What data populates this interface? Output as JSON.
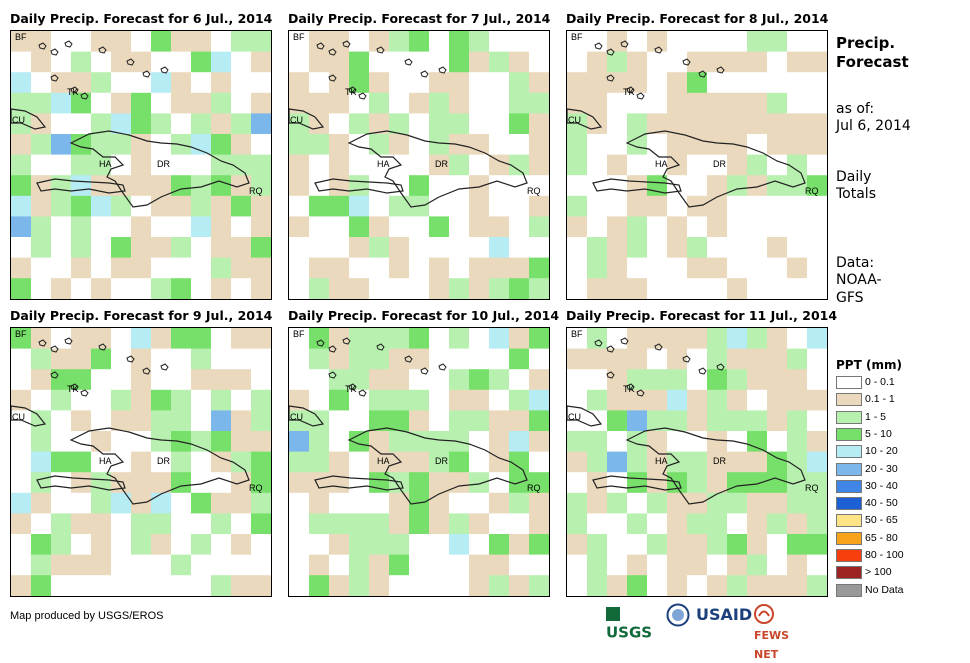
{
  "panels": [
    {
      "title": "Daily Precip. Forecast for 6 Jul., 2014"
    },
    {
      "title": "Daily Precip. Forecast for 7 Jul., 2014"
    },
    {
      "title": "Daily Precip. Forecast for 8 Jul., 2014"
    },
    {
      "title": "Daily Precip. Forecast for 9 Jul., 2014"
    },
    {
      "title": "Daily Precip. Forecast for 10 Jul., 2014"
    },
    {
      "title": "Daily Precip. Forecast for 11 Jul., 2014"
    }
  ],
  "map_labels": {
    "bf": "BF",
    "tk": "TK",
    "cu": "CU",
    "ha": "HA",
    "dr": "DR",
    "rq": "RQ"
  },
  "side": {
    "title_line1": "Precip.",
    "title_line2": "Forecast",
    "asof_line1": "as of:",
    "asof_line2": "Jul 6, 2014",
    "daily_line1": "Daily",
    "daily_line2": "Totals",
    "data_line1": "Data:",
    "data_line2": "NOAA-",
    "data_line3": "GFS"
  },
  "legend": {
    "title": "PPT (mm)",
    "items": [
      {
        "label": "0 - 0.1",
        "color": "#ffffff"
      },
      {
        "label": "0.1 - 1",
        "color": "#ead9bd"
      },
      {
        "label": "1 - 5",
        "color": "#b8f0b0"
      },
      {
        "label": "5 - 10",
        "color": "#77e06a"
      },
      {
        "label": "10 - 20",
        "color": "#b6ecf3"
      },
      {
        "label": "20 - 30",
        "color": "#7cb7ec"
      },
      {
        "label": "30 - 40",
        "color": "#3f86e6"
      },
      {
        "label": "40 - 50",
        "color": "#1d5fd4"
      },
      {
        "label": "50 - 65",
        "color": "#fde587"
      },
      {
        "label": "65 - 80",
        "color": "#f8a41a"
      },
      {
        "label": "80 - 100",
        "color": "#f63f0c"
      },
      {
        "label": "> 100",
        "color": "#9c2424"
      },
      {
        "label": "No Data",
        "color": "#999999"
      }
    ]
  },
  "credit": "Map produced by USGS/EROS",
  "logos": {
    "usgs": "USGS",
    "usaid": "USAID",
    "fewsnet": "FEWS NET"
  }
}
